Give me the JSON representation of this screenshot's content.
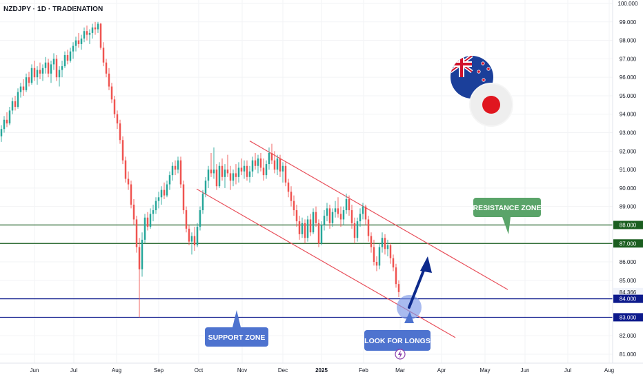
{
  "header": {
    "symbol_line": "NZDJPY · 1D · TRADENATION"
  },
  "chart_data": {
    "type": "candlestick",
    "symbol": "NZDJPY",
    "timeframe": "1D",
    "source": "TRADENATION",
    "y_ticks": [
      "100.000",
      "99.000",
      "98.000",
      "97.000",
      "96.000",
      "95.000",
      "94.000",
      "93.000",
      "92.000",
      "91.000",
      "90.000",
      "89.000",
      "88.000",
      "87.000",
      "86.000",
      "85.000",
      "84.366",
      "84.000",
      "83.000",
      "82.000",
      "81.000"
    ],
    "y_range": [
      80.5,
      100.2
    ],
    "x_ticks": [
      "Jun",
      "Jul",
      "Aug",
      "Sep",
      "Oct",
      "Nov",
      "Dec",
      "2025",
      "Feb",
      "Mar",
      "Apr",
      "May",
      "Jun",
      "Jul",
      "Aug"
    ],
    "current_price": 84.366,
    "highlighted_levels": [
      {
        "value": 88.0,
        "label": "88.000",
        "color": "#1b5e20"
      },
      {
        "value": 87.0,
        "label": "87.000",
        "color": "#1b5e20"
      },
      {
        "value": 84.0,
        "label": "84.000",
        "color": "#0d1a8c"
      },
      {
        "value": 83.0,
        "label": "83.000",
        "color": "#0d1a8c"
      }
    ],
    "channel": {
      "color": "#e8505b",
      "upper": [
        [
          92.5,
          11.0
        ],
        [
          84.5,
          25.5
        ]
      ],
      "lower": [
        [
          90.0,
          1.0
        ],
        [
          82.0,
          26.5
        ]
      ]
    },
    "colors": {
      "up": "#26a69a",
      "down": "#ef5350",
      "resistance": "#2e7d32",
      "support": "#1a237e",
      "callout_green": "#5aa469",
      "callout_blue": "#4e73cf"
    },
    "annotations": {
      "resistance_label": "RESISTANCE ZONE",
      "support_label": "SUPPORT ZONE",
      "longs_label": "LOOK FOR LONGS"
    },
    "flags": [
      "New Zealand",
      "Japan"
    ],
    "ohlc": [
      [
        92.8,
        93.4,
        92.5,
        93.2
      ],
      [
        93.2,
        93.9,
        93.0,
        93.7
      ],
      [
        93.7,
        94.1,
        93.3,
        93.5
      ],
      [
        93.5,
        94.4,
        93.4,
        94.2
      ],
      [
        94.2,
        94.9,
        94.0,
        94.7
      ],
      [
        94.7,
        95.0,
        94.2,
        94.4
      ],
      [
        94.4,
        95.4,
        94.3,
        95.2
      ],
      [
        95.2,
        95.7,
        94.9,
        95.5
      ],
      [
        95.5,
        95.9,
        95.0,
        95.3
      ],
      [
        95.3,
        96.2,
        95.2,
        96.0
      ],
      [
        96.0,
        96.3,
        95.5,
        95.7
      ],
      [
        95.7,
        96.7,
        95.6,
        96.5
      ],
      [
        96.5,
        96.9,
        95.8,
        96.0
      ],
      [
        96.0,
        96.6,
        95.6,
        96.4
      ],
      [
        96.4,
        96.8,
        95.9,
        96.2
      ],
      [
        96.2,
        96.7,
        95.8,
        96.5
      ],
      [
        96.5,
        97.1,
        96.2,
        96.8
      ],
      [
        96.8,
        97.0,
        96.0,
        96.2
      ],
      [
        96.2,
        96.9,
        95.7,
        96.7
      ],
      [
        96.7,
        97.3,
        96.4,
        97.0
      ],
      [
        97.0,
        97.2,
        95.8,
        96.0
      ],
      [
        96.0,
        96.6,
        95.5,
        96.4
      ],
      [
        96.4,
        96.9,
        96.0,
        96.6
      ],
      [
        96.6,
        97.4,
        96.5,
        97.2
      ],
      [
        97.2,
        97.5,
        96.7,
        96.9
      ],
      [
        96.9,
        97.6,
        96.8,
        97.4
      ],
      [
        97.4,
        97.9,
        97.0,
        97.7
      ],
      [
        97.7,
        98.2,
        97.4,
        98.0
      ],
      [
        98.0,
        98.4,
        97.6,
        97.8
      ],
      [
        97.8,
        98.3,
        97.5,
        98.1
      ],
      [
        98.1,
        98.7,
        97.9,
        98.5
      ],
      [
        98.5,
        98.8,
        98.0,
        98.3
      ],
      [
        98.3,
        98.6,
        97.8,
        98.4
      ],
      [
        98.4,
        98.9,
        98.1,
        98.7
      ],
      [
        98.7,
        99.0,
        98.3,
        98.6
      ],
      [
        98.6,
        99.0,
        98.4,
        98.9
      ],
      [
        98.9,
        98.95,
        97.5,
        97.6
      ],
      [
        97.6,
        97.9,
        96.6,
        96.8
      ],
      [
        96.8,
        97.0,
        96.0,
        96.2
      ],
      [
        96.2,
        96.5,
        95.3,
        95.5
      ],
      [
        95.5,
        95.7,
        94.6,
        94.8
      ],
      [
        94.8,
        95.0,
        93.8,
        94.0
      ],
      [
        94.0,
        94.2,
        93.2,
        93.5
      ],
      [
        93.5,
        93.7,
        92.4,
        92.6
      ],
      [
        92.6,
        92.8,
        91.3,
        91.5
      ],
      [
        91.5,
        91.7,
        90.3,
        90.5
      ],
      [
        90.5,
        90.9,
        89.9,
        90.2
      ],
      [
        90.2,
        90.4,
        88.9,
        89.1
      ],
      [
        89.1,
        89.4,
        88.0,
        88.3
      ],
      [
        88.3,
        88.5,
        86.5,
        86.8
      ],
      [
        86.8,
        87.3,
        83.0,
        85.6
      ],
      [
        85.6,
        87.6,
        85.2,
        87.2
      ],
      [
        87.2,
        88.6,
        87.0,
        88.4
      ],
      [
        88.4,
        88.7,
        87.7,
        87.9
      ],
      [
        87.9,
        88.9,
        87.8,
        88.6
      ],
      [
        88.6,
        89.1,
        88.2,
        88.8
      ],
      [
        88.8,
        89.5,
        88.6,
        89.3
      ],
      [
        89.3,
        89.8,
        88.9,
        89.5
      ],
      [
        89.5,
        90.1,
        89.1,
        89.9
      ],
      [
        89.9,
        90.3,
        89.4,
        89.6
      ],
      [
        89.6,
        90.4,
        89.5,
        90.2
      ],
      [
        90.2,
        90.9,
        89.9,
        90.7
      ],
      [
        90.7,
        91.4,
        90.4,
        91.2
      ],
      [
        91.2,
        91.5,
        90.7,
        91.0
      ],
      [
        91.0,
        91.7,
        90.8,
        91.5
      ],
      [
        91.5,
        91.7,
        90.0,
        90.2
      ],
      [
        90.2,
        90.4,
        88.6,
        88.8
      ],
      [
        88.8,
        89.0,
        87.6,
        87.8
      ],
      [
        87.8,
        88.0,
        86.9,
        87.1
      ],
      [
        87.1,
        87.6,
        86.4,
        87.4
      ],
      [
        87.4,
        87.9,
        86.6,
        86.9
      ],
      [
        86.9,
        88.1,
        86.8,
        87.9
      ],
      [
        87.9,
        89.0,
        87.7,
        88.8
      ],
      [
        88.8,
        89.9,
        88.6,
        89.7
      ],
      [
        89.7,
        90.6,
        89.5,
        90.4
      ],
      [
        90.4,
        91.2,
        90.0,
        91.0
      ],
      [
        91.0,
        91.9,
        90.6,
        90.8
      ],
      [
        90.8,
        92.2,
        90.5,
        91.0
      ],
      [
        91.0,
        91.3,
        89.9,
        90.1
      ],
      [
        90.1,
        91.4,
        90.0,
        91.2
      ],
      [
        91.2,
        91.6,
        90.4,
        90.6
      ],
      [
        90.6,
        91.3,
        90.0,
        91.0
      ],
      [
        91.0,
        91.8,
        90.6,
        90.8
      ],
      [
        90.8,
        91.2,
        89.9,
        90.4
      ],
      [
        90.4,
        91.0,
        90.1,
        90.8
      ],
      [
        90.8,
        91.3,
        90.2,
        90.6
      ],
      [
        90.6,
        91.4,
        90.3,
        91.1
      ],
      [
        91.1,
        91.6,
        90.7,
        90.9
      ],
      [
        90.9,
        91.5,
        90.5,
        91.2
      ],
      [
        91.2,
        91.5,
        90.4,
        90.6
      ],
      [
        90.6,
        91.2,
        90.3,
        90.9
      ],
      [
        90.9,
        91.7,
        90.6,
        91.5
      ],
      [
        91.5,
        91.9,
        91.0,
        91.2
      ],
      [
        91.2,
        91.8,
        90.8,
        91.6
      ],
      [
        91.6,
        91.9,
        90.9,
        91.1
      ],
      [
        91.1,
        91.6,
        90.4,
        90.7
      ],
      [
        90.7,
        91.5,
        90.5,
        91.3
      ],
      [
        91.3,
        92.2,
        91.0,
        91.9
      ],
      [
        91.9,
        92.4,
        91.3,
        91.5
      ],
      [
        91.5,
        92.0,
        90.8,
        91.0
      ],
      [
        91.0,
        91.8,
        90.7,
        91.6
      ],
      [
        91.6,
        91.8,
        90.6,
        90.9
      ],
      [
        90.9,
        91.4,
        90.3,
        91.2
      ],
      [
        91.2,
        91.4,
        90.1,
        90.3
      ],
      [
        90.3,
        90.5,
        89.5,
        89.8
      ],
      [
        89.8,
        90.1,
        89.0,
        89.3
      ],
      [
        89.3,
        89.6,
        88.5,
        88.8
      ],
      [
        88.8,
        89.1,
        87.9,
        88.2
      ],
      [
        88.2,
        88.5,
        87.2,
        87.5
      ],
      [
        87.5,
        88.4,
        87.3,
        88.1
      ],
      [
        88.1,
        88.3,
        87.0,
        87.3
      ],
      [
        87.3,
        88.5,
        87.1,
        88.3
      ],
      [
        88.3,
        88.6,
        87.4,
        87.6
      ],
      [
        87.6,
        88.9,
        87.5,
        88.7
      ],
      [
        88.7,
        89.0,
        87.9,
        88.1
      ],
      [
        88.1,
        88.3,
        86.8,
        87.0
      ],
      [
        87.0,
        88.2,
        86.9,
        88.0
      ],
      [
        88.0,
        88.8,
        87.7,
        88.5
      ],
      [
        88.5,
        89.2,
        88.2,
        88.9
      ],
      [
        88.9,
        89.1,
        87.8,
        88.1
      ],
      [
        88.1,
        88.9,
        87.9,
        88.7
      ],
      [
        88.7,
        89.3,
        88.4,
        88.9
      ],
      [
        88.9,
        89.5,
        88.4,
        88.6
      ],
      [
        88.6,
        89.0,
        87.9,
        88.3
      ],
      [
        88.3,
        89.0,
        88.0,
        88.8
      ],
      [
        88.8,
        89.7,
        88.6,
        89.4
      ],
      [
        89.4,
        89.6,
        88.5,
        88.8
      ],
      [
        88.8,
        89.1,
        87.8,
        88.1
      ],
      [
        88.1,
        88.4,
        87.0,
        87.3
      ],
      [
        87.3,
        88.4,
        87.1,
        88.2
      ],
      [
        88.2,
        88.9,
        87.9,
        88.6
      ],
      [
        88.6,
        89.2,
        88.3,
        89.0
      ],
      [
        89.0,
        89.1,
        88.0,
        88.3
      ],
      [
        88.3,
        88.5,
        87.1,
        87.4
      ],
      [
        87.4,
        87.6,
        86.5,
        86.8
      ],
      [
        86.8,
        87.2,
        85.8,
        86.0
      ],
      [
        86.0,
        86.3,
        85.5,
        85.8
      ],
      [
        85.8,
        87.0,
        85.6,
        86.8
      ],
      [
        86.8,
        87.6,
        86.5,
        87.3
      ],
      [
        87.3,
        87.5,
        86.4,
        86.7
      ],
      [
        86.7,
        87.2,
        86.3,
        86.9
      ],
      [
        86.9,
        87.0,
        85.9,
        86.2
      ],
      [
        86.2,
        86.4,
        85.5,
        85.7
      ],
      [
        85.7,
        85.9,
        84.6,
        84.8
      ],
      [
        84.8,
        85.0,
        84.1,
        84.366
      ]
    ]
  }
}
